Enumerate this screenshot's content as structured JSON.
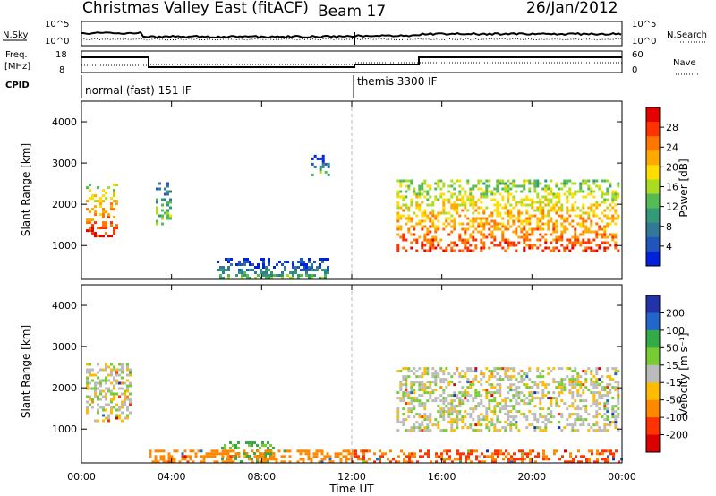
{
  "header": {
    "radar": "Christmas Valley East (fitACF)",
    "beam": "Beam 17",
    "date": "26/Jan/2012"
  },
  "top_panels": {
    "nsky_label": "N.Sky",
    "nsky_ticks": [
      "10^5",
      "10^0"
    ],
    "nsearch_label": "N.Search",
    "nsearch_ticks": [
      "10^5",
      "10^0"
    ],
    "freq_label": "Freq.",
    "freq_unit": "[MHz]",
    "freq_ticks": [
      "18",
      "8"
    ],
    "nave_label": "Nave",
    "nave_ticks": [
      "60",
      "0"
    ],
    "cpid_label": "CPID",
    "cpid_modes": [
      {
        "label": "normal (fast) 151 IF",
        "start_hour": 0
      },
      {
        "label": "themis 3300 IF",
        "start_hour": 12
      }
    ]
  },
  "x_axis": {
    "label": "Time UT",
    "ticks": [
      "00:00",
      "04:00",
      "08:00",
      "12:00",
      "16:00",
      "20:00",
      "00:00"
    ]
  },
  "colorbar_power": {
    "label": "Power [dB]",
    "ticks": [
      "28",
      "24",
      "20",
      "16",
      "12",
      "8",
      "4"
    ],
    "colors": [
      "#e60000",
      "#ff3300",
      "#ff7700",
      "#ffaa00",
      "#ffdd00",
      "#aadd22",
      "#55bb55",
      "#339977",
      "#337799",
      "#2255bb",
      "#0022dd"
    ]
  },
  "colorbar_velocity": {
    "label": "Velocity [m s⁻¹]",
    "ticks": [
      "200",
      "100",
      "50",
      "15",
      "-15",
      "-50",
      "-100",
      "-200"
    ],
    "colors": [
      "#2233aa",
      "#2266cc",
      "#33aa44",
      "#77cc33",
      "#bbbbbb",
      "#ffbb00",
      "#ff8800",
      "#ff3300",
      "#dd0000"
    ]
  },
  "chart_data": [
    {
      "type": "heatmap",
      "title": "Power",
      "xlabel": "Time UT",
      "ylabel": "Slant Range [km]",
      "x_range_hours": [
        0,
        24
      ],
      "y_range_km": [
        180,
        4500
      ],
      "y_ticks": [
        1000,
        2000,
        3000,
        4000
      ],
      "colorbar": {
        "label": "Power [dB]",
        "range": [
          0,
          30
        ],
        "ticks": [
          4,
          8,
          12,
          16,
          20,
          24,
          28
        ]
      },
      "regions": [
        {
          "hours": [
            0.2,
            1.6
          ],
          "km": [
            1200,
            2500
          ],
          "value": 22
        },
        {
          "hours": [
            3.3,
            4.0
          ],
          "km": [
            1500,
            2600
          ],
          "value": 10
        },
        {
          "hours": [
            6.0,
            11.0
          ],
          "km": [
            200,
            700
          ],
          "value": 6
        },
        {
          "hours": [
            10.2,
            11.0
          ],
          "km": [
            2700,
            3200
          ],
          "value": 6
        },
        {
          "hours": [
            14.0,
            23.8
          ],
          "km": [
            900,
            2600
          ],
          "value": 20
        }
      ]
    },
    {
      "type": "heatmap",
      "title": "Velocity",
      "xlabel": "Time UT",
      "ylabel": "Slant Range [km]",
      "x_range_hours": [
        0,
        24
      ],
      "y_range_km": [
        180,
        4500
      ],
      "y_ticks": [
        1000,
        2000,
        3000,
        4000
      ],
      "colorbar": {
        "label": "Velocity [m s⁻¹]",
        "range": [
          -200,
          200
        ],
        "ticks": [
          200,
          100,
          50,
          15,
          -15,
          -50,
          -100,
          -200
        ]
      },
      "regions": [
        {
          "hours": [
            0.2,
            2.2
          ],
          "km": [
            1200,
            2600
          ],
          "value": 0
        },
        {
          "hours": [
            6.2,
            8.5
          ],
          "km": [
            200,
            700
          ],
          "value": 40
        },
        {
          "hours": [
            3.0,
            12.0
          ],
          "km": [
            200,
            500
          ],
          "value": -60
        },
        {
          "hours": [
            14.0,
            23.8
          ],
          "km": [
            1000,
            2500
          ],
          "value": 0
        },
        {
          "hours": [
            12.0,
            24.0
          ],
          "km": [
            200,
            500
          ],
          "value": -80
        }
      ]
    }
  ]
}
